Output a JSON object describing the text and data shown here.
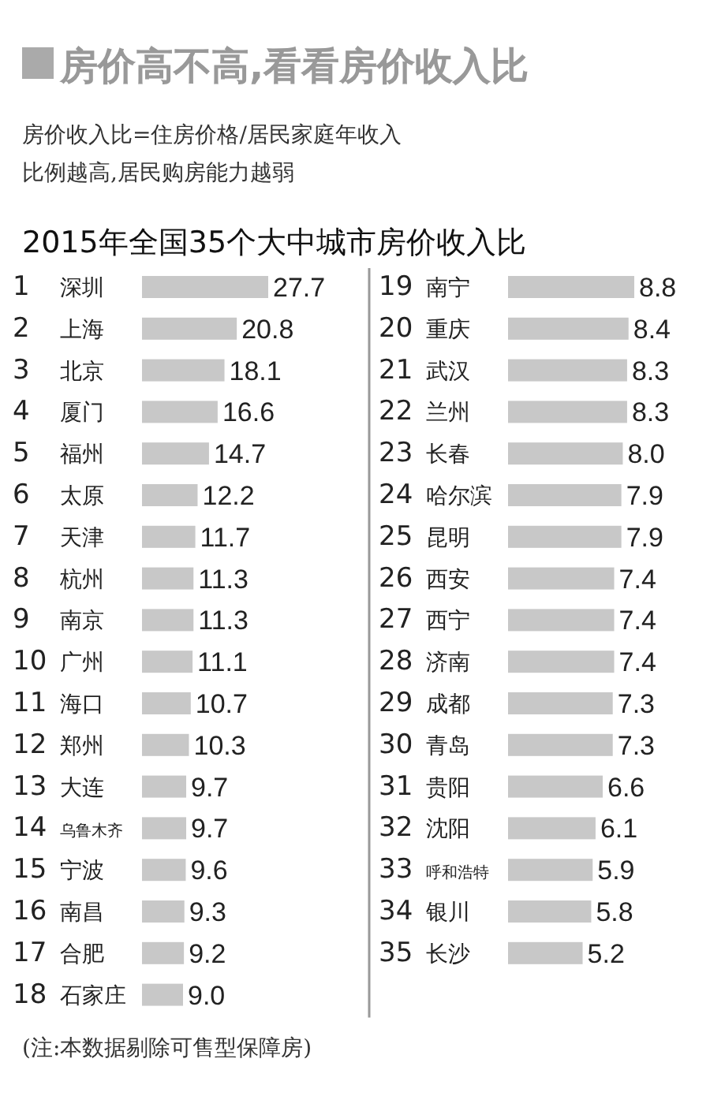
{
  "chart_data": [
    {
      "type": "bar",
      "orientation": "horizontal",
      "title": "房价高不高,看看房价收入比",
      "subtitle": "2015年全国35个大中城市房价收入比",
      "annotations": [
        "房价收入比=住房价格/居民家庭年收入",
        "比例越高,居民购房能力越弱",
        "(注:本数据剔除可售型保障房)"
      ],
      "color": "#c8c8c8",
      "value_labels": [
        "27.7",
        "20.8",
        "18.1",
        "16.6",
        "14.7",
        "12.2",
        "11.7",
        "11.3",
        "11.3",
        "11.1",
        "10.7",
        "10.3",
        "9.7",
        "9.7",
        "9.6",
        "9.3",
        "9.2",
        "9.0"
      ],
      "categories": [
        "1 深圳",
        "2 上海",
        "3 北京",
        "4 厦门",
        "5 福州",
        "6 太原",
        "7 天津",
        "8 杭州",
        "9 南京",
        "10 广州",
        "11 海口",
        "12 郑州",
        "13 大连",
        "14 乌鲁木齐",
        "15 宁波",
        "16 南昌",
        "17 合肥",
        "18 石家庄"
      ],
      "values": [
        27.7,
        20.8,
        18.1,
        16.6,
        14.7,
        12.2,
        11.7,
        11.3,
        11.3,
        11.1,
        10.7,
        10.3,
        9.7,
        9.7,
        9.6,
        9.3,
        9.2,
        9.0
      ]
    },
    {
      "type": "bar",
      "orientation": "horizontal",
      "color": "#c8c8c8",
      "value_labels": [
        "8.8",
        "8.4",
        "8.3",
        "8.3",
        "8.0",
        "7.9",
        "7.9",
        "7.4",
        "7.4",
        "7.4",
        "7.3",
        "7.3",
        "6.6",
        "6.1",
        "5.9",
        "5.8",
        "5.2"
      ],
      "categories": [
        "19 南宁",
        "20 重庆",
        "21 武汉",
        "22 兰州",
        "23 长春",
        "24 哈尔滨",
        "25 昆明",
        "26 西安",
        "27 西宁",
        "28 济南",
        "29 成都",
        "30 青岛",
        "31 贵阳",
        "32 沈阳",
        "33 呼和浩特",
        "34 银川",
        "35 长沙"
      ],
      "values": [
        8.8,
        8.4,
        8.3,
        8.3,
        8.0,
        7.9,
        7.9,
        7.4,
        7.4,
        7.4,
        7.3,
        7.3,
        6.6,
        6.1,
        5.9,
        5.8,
        5.2
      ]
    }
  ]
}
